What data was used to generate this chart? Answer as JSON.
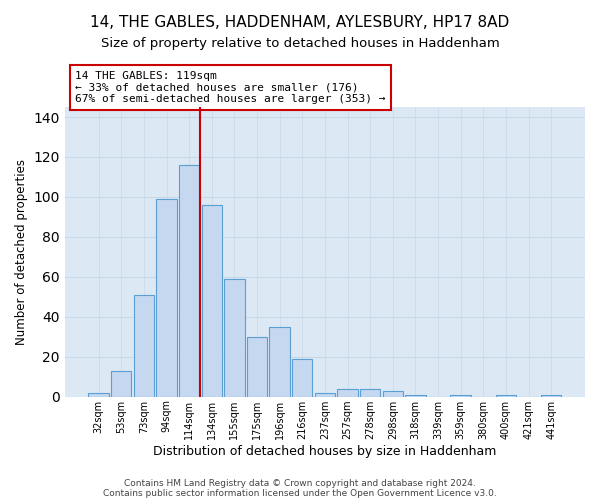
{
  "title1": "14, THE GABLES, HADDENHAM, AYLESBURY, HP17 8AD",
  "title2": "Size of property relative to detached houses in Haddenham",
  "xlabel": "Distribution of detached houses by size in Haddenham",
  "ylabel": "Number of detached properties",
  "bar_labels": [
    "32sqm",
    "53sqm",
    "73sqm",
    "94sqm",
    "114sqm",
    "134sqm",
    "155sqm",
    "175sqm",
    "196sqm",
    "216sqm",
    "237sqm",
    "257sqm",
    "278sqm",
    "298sqm",
    "318sqm",
    "339sqm",
    "359sqm",
    "380sqm",
    "400sqm",
    "421sqm",
    "441sqm"
  ],
  "bar_heights": [
    2,
    13,
    51,
    99,
    116,
    96,
    59,
    30,
    35,
    19,
    2,
    4,
    4,
    3,
    1,
    0,
    1,
    0,
    1,
    0,
    1
  ],
  "bar_color": "#c5d8f0",
  "bar_edge_color": "#5a9fd4",
  "vline_x": 4.5,
  "vline_color": "#cc0000",
  "annotation_lines": [
    "14 THE GABLES: 119sqm",
    "← 33% of detached houses are smaller (176)",
    "67% of semi-detached houses are larger (353) →"
  ],
  "annotation_box_color": "#ffffff",
  "annotation_box_edge": "#cc0000",
  "ylim": [
    0,
    145
  ],
  "yticks": [
    0,
    20,
    40,
    60,
    80,
    100,
    120,
    140
  ],
  "grid_color": "#c8d8e8",
  "plot_bg_color": "#dce9f5",
  "fig_bg_color": "#ffffff",
  "footer1": "Contains HM Land Registry data © Crown copyright and database right 2024.",
  "footer2": "Contains public sector information licensed under the Open Government Licence v3.0.",
  "title_fontsize": 11,
  "subtitle_fontsize": 9.5,
  "title_fontweight": "normal"
}
